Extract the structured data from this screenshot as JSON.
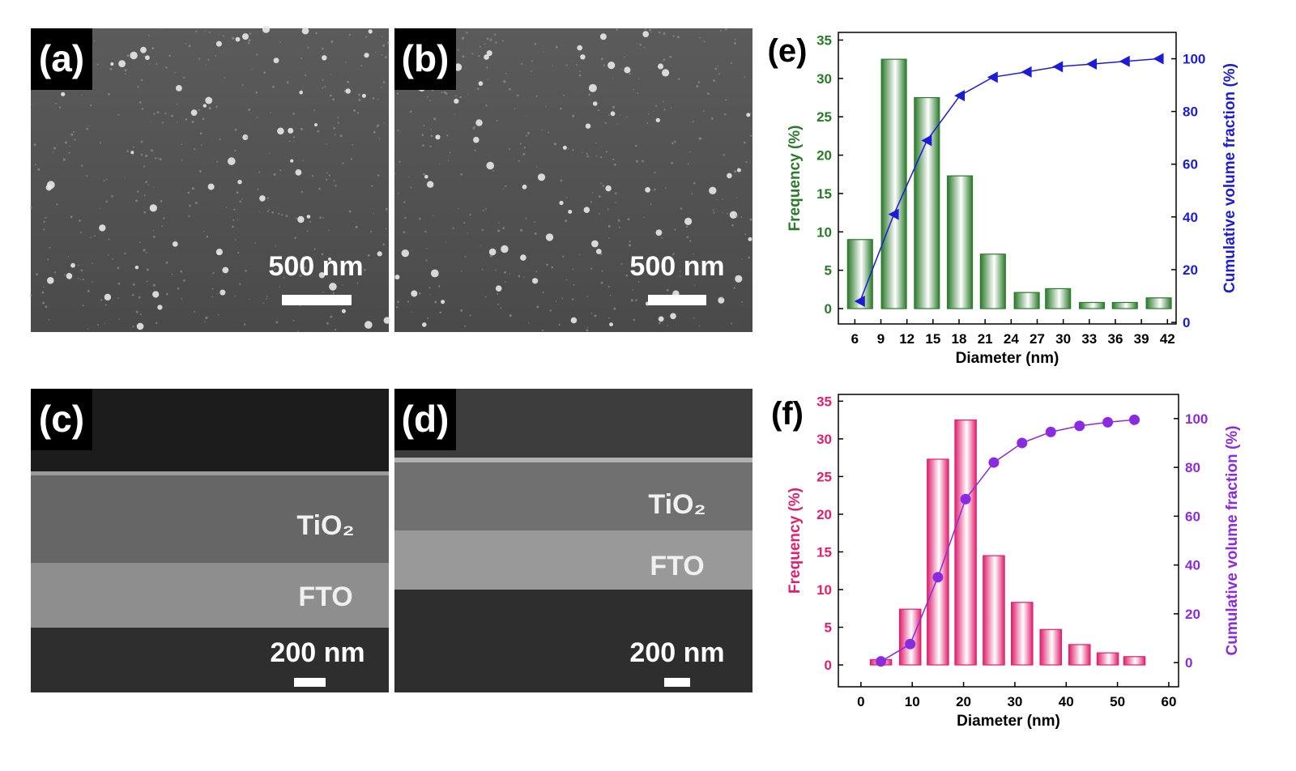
{
  "panels": [
    {
      "label": "(a)",
      "scale_bar": "500 nm"
    },
    {
      "label": "(b)",
      "scale_bar": "500 nm"
    },
    {
      "label": "(c)",
      "scale_bar": "200 nm",
      "layers": [
        "TiO₂",
        "FTO"
      ]
    },
    {
      "label": "(d)",
      "scale_bar": "200 nm",
      "layers": [
        "TiO₂",
        "FTO"
      ]
    }
  ],
  "chart_data": [
    {
      "type": "combo",
      "label": "(e)",
      "x_label": "Diameter (nm)",
      "y_label": "Frequency (%)",
      "y2_label": "Cumulative volume fraction (%)",
      "x": [
        6.6,
        10.5,
        14.3,
        18.1,
        21.9,
        25.8,
        29.4,
        33.3,
        37.1,
        41
      ],
      "xlim": [
        4.1,
        43
      ],
      "xticks": [
        6,
        9,
        12,
        15,
        18,
        21,
        24,
        27,
        30,
        33,
        36,
        39,
        42
      ],
      "ylim": [
        -2,
        36
      ],
      "yticks": [
        0,
        5,
        10,
        15,
        20,
        25,
        30,
        35
      ],
      "y2lim": [
        -0.6,
        110
      ],
      "y2ticks": [
        0,
        20,
        40,
        60,
        80,
        100
      ],
      "series": [
        {
          "type": "bar",
          "color": "#2b7a2b",
          "values": [
            9,
            32.5,
            27.5,
            17.3,
            7.1,
            2.1,
            2.6,
            0.8,
            0.8,
            1.4
          ]
        },
        {
          "type": "line",
          "axis": "y2",
          "marker": "triangle",
          "color": "#1c1cd6",
          "values": [
            8,
            41,
            69,
            86,
            93,
            95,
            97,
            98,
            99,
            100
          ]
        }
      ]
    },
    {
      "type": "combo",
      "label": "(f)",
      "x_label": "Diameter (nm)",
      "y_label": "Frequency (%)",
      "y2_label": "Cumulative volume fraction (%)",
      "x": [
        3.9,
        9.6,
        15,
        20.4,
        25.9,
        31.4,
        37,
        42.6,
        48.1,
        53.3
      ],
      "xlim": [
        -4.4,
        61.9
      ],
      "xticks": [
        0,
        10,
        20,
        30,
        40,
        50,
        60
      ],
      "ylim": [
        -2.9,
        35.9
      ],
      "yticks": [
        0,
        5,
        10,
        15,
        20,
        25,
        30,
        35
      ],
      "y2lim": [
        -9.9,
        109.9
      ],
      "y2ticks": [
        0,
        20,
        40,
        60,
        80,
        100
      ],
      "series": [
        {
          "type": "bar",
          "color": "#e0206e",
          "values": [
            0.7,
            7.4,
            27.3,
            32.5,
            14.5,
            8.3,
            4.7,
            2.7,
            1.6,
            1.1
          ]
        },
        {
          "type": "line",
          "axis": "y2",
          "marker": "circle",
          "color": "#8a2be2",
          "values": [
            0.5,
            7.6,
            35,
            67,
            82,
            90,
            94.5,
            97,
            98.5,
            99.5
          ]
        }
      ]
    }
  ]
}
